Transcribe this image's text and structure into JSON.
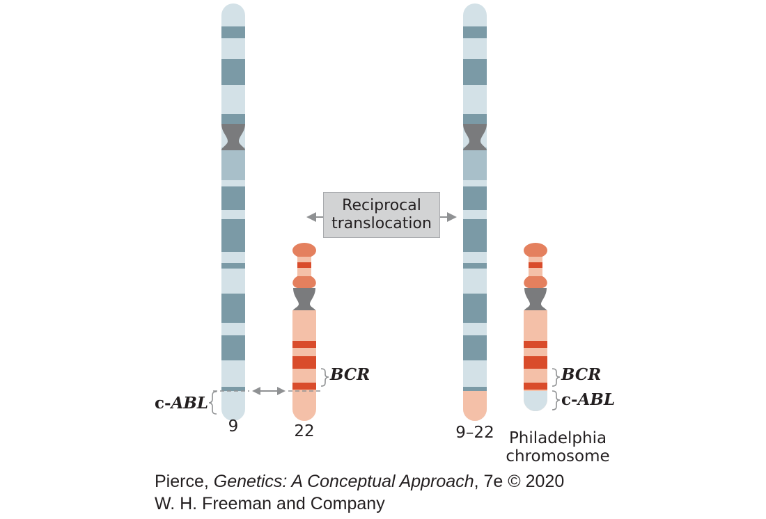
{
  "translocation_label": [
    "Reciprocal",
    "translocation"
  ],
  "genes": {
    "abl_prefix": "c-",
    "abl_name": "ABL",
    "bcr_name": "BCR"
  },
  "chromosomes": {
    "chr9": "9",
    "chr22": "22",
    "chr9_22": "9–22",
    "philadelphia": [
      "Philadelphia",
      "chromosome"
    ]
  },
  "credit": {
    "author": "Pierce, ",
    "book_title": "Genetics: A Conceptual Approach",
    "edition": ", 7e © 2020",
    "publisher": "W. H. Freeman and Company"
  },
  "colors": {
    "chr9_light": "#d3e1e7",
    "chr9_dark": "#7b9aa6",
    "chr9_mid": "#a8bfc9",
    "centromere": "#7a7b7d",
    "chr22_base": "#f4c0a8",
    "chr22_band": "#d94c2b",
    "chr22_cap": "#e4805e",
    "arrow": "#8f9193"
  }
}
